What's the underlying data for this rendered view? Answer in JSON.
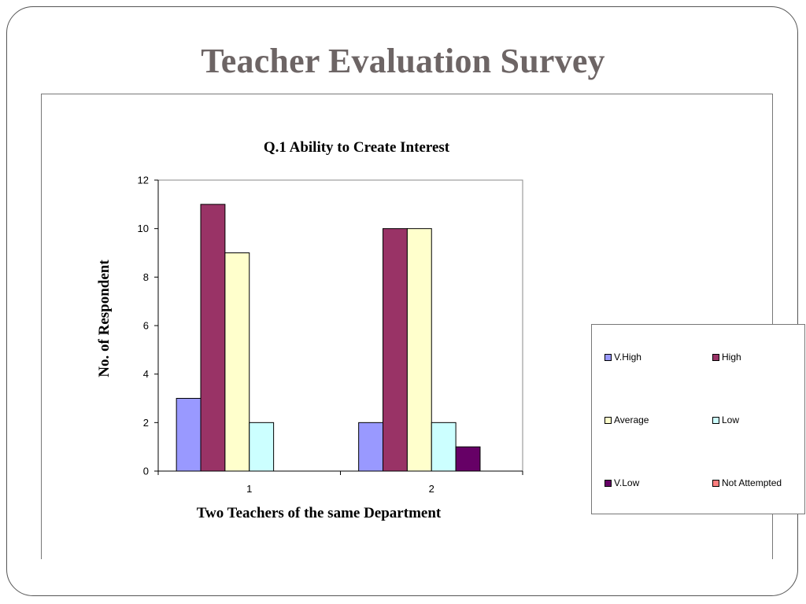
{
  "slide": {
    "title": "Teacher Evaluation Survey"
  },
  "chart_data": {
    "type": "bar",
    "title": "Q.1 Ability to Create Interest",
    "xlabel": "Two Teachers of the same Department",
    "ylabel": "No. of Respondent",
    "categories": [
      "1",
      "2"
    ],
    "ylim": [
      0,
      12
    ],
    "yticks": [
      "0",
      "2",
      "4",
      "6",
      "8",
      "10",
      "12"
    ],
    "grid": false,
    "legend_position": "right",
    "series": [
      {
        "name": "V.High",
        "values": [
          3,
          2
        ],
        "color": "#9999ff"
      },
      {
        "name": "High",
        "values": [
          11,
          10
        ],
        "color": "#993366"
      },
      {
        "name": "Average",
        "values": [
          9,
          10
        ],
        "color": "#ffffcc"
      },
      {
        "name": "Low",
        "values": [
          2,
          2
        ],
        "color": "#ccffff"
      },
      {
        "name": "V.Low",
        "values": [
          0,
          1
        ],
        "color": "#660066"
      },
      {
        "name": "Not Attempted",
        "values": [
          0,
          0
        ],
        "color": "#ff8080"
      }
    ]
  }
}
